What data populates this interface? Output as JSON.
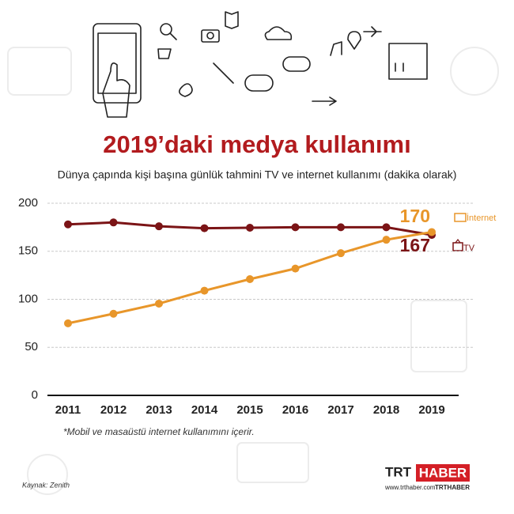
{
  "chart_data": {
    "type": "line",
    "title": "2019’daki medya kullanımı",
    "subtitle": "Dünya çapında kişi başına günlük tahmini TV ve internet kullanımı (dakika olarak)",
    "note": "*Mobil ve masaüstü internet kullanımını içerir.",
    "source": "Kaynak: Zenith",
    "brand": {
      "trt": "TRT",
      "haber": "HABER",
      "web": "www.trthaber.com",
      "handle": "TRTHABER"
    },
    "categories": [
      "2011",
      "2012",
      "2013",
      "2014",
      "2015",
      "2016",
      "2017",
      "2018",
      "2019"
    ],
    "series": [
      {
        "name": "TV",
        "color": "#7b1416",
        "values": [
          178,
          180,
          176,
          174,
          174.5,
          175,
          175,
          175,
          167
        ]
      },
      {
        "name": "İnternet",
        "color": "#e8962a",
        "values": [
          75,
          85,
          95.5,
          109,
          121,
          132,
          148,
          162,
          170
        ]
      }
    ],
    "ylim": [
      0,
      200
    ],
    "yticks": [
      0,
      50,
      100,
      150,
      200
    ],
    "grid": true
  }
}
